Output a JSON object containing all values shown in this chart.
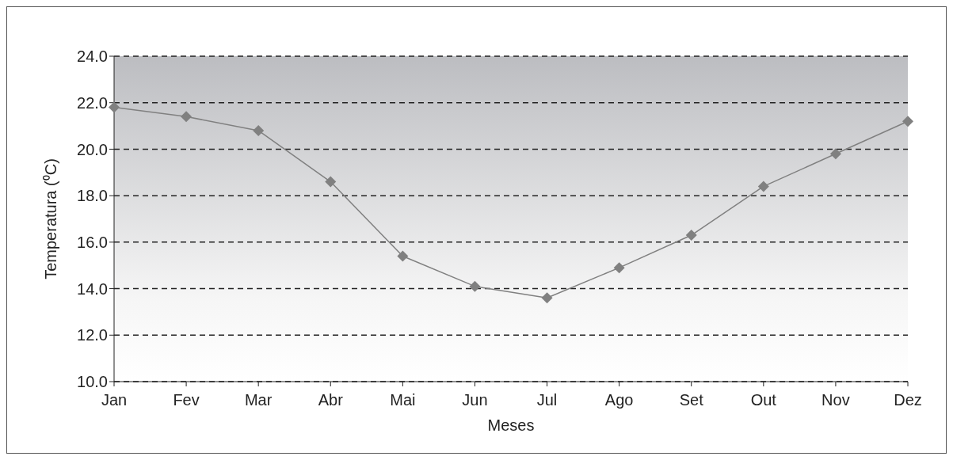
{
  "chart_data": {
    "type": "line",
    "xlabel": "Meses",
    "ylabel": "Temperatura (⁰C)",
    "categories": [
      "Jan",
      "Fev",
      "Mar",
      "Abr",
      "Mai",
      "Jun",
      "Jul",
      "Ago",
      "Set",
      "Out",
      "Nov",
      "Dez"
    ],
    "series": [
      {
        "color": "#808080",
        "values": [
          21.8,
          21.4,
          20.8,
          18.6,
          15.4,
          14.1,
          13.6,
          14.9,
          16.3,
          18.4,
          19.8,
          21.2
        ]
      }
    ],
    "ylim": [
      10,
      24
    ],
    "yticks": [
      {
        "value": 10,
        "label": "10.0"
      },
      {
        "value": 12,
        "label": "12.0"
      },
      {
        "value": 14,
        "label": "14.0"
      },
      {
        "value": 16,
        "label": "16.0"
      },
      {
        "value": 18,
        "label": "18.0"
      },
      {
        "value": 20,
        "label": "20.0"
      },
      {
        "value": 22,
        "label": "22.0"
      },
      {
        "value": 24,
        "label": "24.0"
      }
    ],
    "grid": "y",
    "legend": false,
    "marker": "diamond",
    "line_style": "solid"
  }
}
